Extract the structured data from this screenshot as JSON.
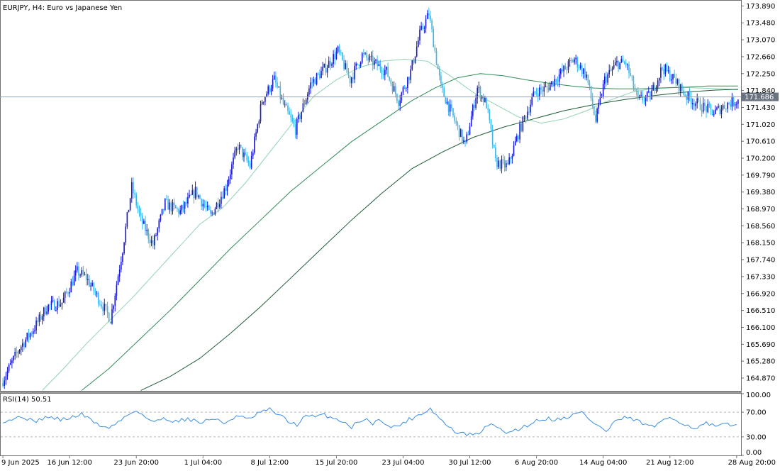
{
  "title": "EURJPY, H4:  Euro vs Japanese Yen",
  "colors": {
    "bull": "#1a1acc",
    "bear": "#38b8ec",
    "ma_fast": "#8fd3b0",
    "ma_mid": "#2e8b57",
    "ma_slow": "#1d5c36",
    "rsi": "#3a8ee6",
    "price_line": "#9aa3ad",
    "frame": "#707070"
  },
  "chart_data": [
    {
      "type": "candlestick",
      "symbol": "EURJPY",
      "timeframe": "H4",
      "ylim": [
        164.56,
        174.0
      ],
      "y_ticks": [
        "173.890",
        "173.480",
        "173.070",
        "172.660",
        "172.250",
        "171.840",
        "171.430",
        "171.020",
        "170.610",
        "170.200",
        "169.790",
        "169.380",
        "168.970",
        "168.560",
        "168.150",
        "167.740",
        "167.330",
        "166.920",
        "166.510",
        "166.100",
        "165.690",
        "165.280",
        "164.870"
      ],
      "y_tick_values": [
        173.89,
        173.48,
        173.07,
        172.66,
        172.25,
        171.84,
        171.43,
        171.02,
        170.61,
        170.2,
        169.79,
        169.38,
        168.97,
        168.56,
        168.15,
        167.74,
        167.33,
        166.92,
        166.51,
        166.1,
        165.69,
        165.28,
        164.87
      ],
      "x_ticks": [
        "9 Jun 2025",
        "16 Jun 12:00",
        "23 Jun 20:00",
        "1 Jul 04:00",
        "8 Jul 12:00",
        "15 Jul 20:00",
        "23 Jul 04:00",
        "30 Jul 12:00",
        "6 Aug 20:00",
        "14 Aug 04:00",
        "21 Aug 12:00",
        "28 Aug 20:00"
      ],
      "x_tick_bars": [
        0,
        44,
        88,
        132,
        176,
        220,
        264,
        308,
        352,
        396,
        440,
        484
      ],
      "bar_count": 486,
      "current_price": 171.686,
      "current_price_label": "171.686",
      "price_path": [
        [
          0,
          164.75
        ],
        [
          12,
          165.6
        ],
        [
          22,
          166.1
        ],
        [
          30,
          166.6
        ],
        [
          40,
          166.7
        ],
        [
          50,
          167.45
        ],
        [
          56,
          167.3
        ],
        [
          64,
          166.8
        ],
        [
          72,
          166.3
        ],
        [
          80,
          168.0
        ],
        [
          86,
          169.5
        ],
        [
          92,
          168.7
        ],
        [
          100,
          168.1
        ],
        [
          108,
          169.1
        ],
        [
          118,
          168.9
        ],
        [
          128,
          169.4
        ],
        [
          138,
          168.8
        ],
        [
          148,
          169.5
        ],
        [
          156,
          170.5
        ],
        [
          164,
          170.0
        ],
        [
          172,
          171.6
        ],
        [
          180,
          172.1
        ],
        [
          186,
          171.5
        ],
        [
          194,
          170.9
        ],
        [
          204,
          172.0
        ],
        [
          214,
          172.4
        ],
        [
          222,
          172.8
        ],
        [
          230,
          172.1
        ],
        [
          238,
          172.7
        ],
        [
          246,
          172.5
        ],
        [
          254,
          172.3
        ],
        [
          262,
          171.6
        ],
        [
          270,
          172.3
        ],
        [
          276,
          173.2
        ],
        [
          282,
          173.7
        ],
        [
          290,
          171.9
        ],
        [
          298,
          171.2
        ],
        [
          306,
          170.5
        ],
        [
          314,
          171.9
        ],
        [
          320,
          171.5
        ],
        [
          326,
          170.1
        ],
        [
          334,
          170.0
        ],
        [
          342,
          170.9
        ],
        [
          352,
          171.8
        ],
        [
          360,
          171.9
        ],
        [
          370,
          172.3
        ],
        [
          378,
          172.6
        ],
        [
          386,
          172.2
        ],
        [
          392,
          171.1
        ],
        [
          398,
          172.1
        ],
        [
          406,
          172.5
        ],
        [
          412,
          172.5
        ],
        [
          420,
          171.6
        ],
        [
          428,
          171.7
        ],
        [
          436,
          172.4
        ],
        [
          444,
          172.1
        ],
        [
          452,
          171.7
        ],
        [
          460,
          171.5
        ],
        [
          470,
          171.3
        ],
        [
          478,
          171.5
        ],
        [
          485,
          171.6
        ]
      ],
      "moving_averages": [
        {
          "period_hint": "fast",
          "path": [
            [
              26,
              164.57
            ],
            [
              40,
              165.1
            ],
            [
              55,
              165.7
            ],
            [
              70,
              166.25
            ],
            [
              85,
              166.8
            ],
            [
              100,
              167.4
            ],
            [
              115,
              168.0
            ],
            [
              130,
              168.6
            ],
            [
              145,
              169.0
            ],
            [
              160,
              169.6
            ],
            [
              175,
              170.3
            ],
            [
              190,
              171.0
            ],
            [
              205,
              171.7
            ],
            [
              220,
              172.1
            ],
            [
              235,
              172.4
            ],
            [
              250,
              172.55
            ],
            [
              265,
              172.6
            ],
            [
              280,
              172.55
            ],
            [
              295,
              172.2
            ],
            [
              310,
              171.8
            ],
            [
              325,
              171.5
            ],
            [
              340,
              171.2
            ],
            [
              355,
              171.05
            ],
            [
              370,
              171.15
            ],
            [
              385,
              171.35
            ],
            [
              400,
              171.6
            ],
            [
              415,
              171.8
            ],
            [
              430,
              171.9
            ],
            [
              445,
              171.92
            ],
            [
              460,
              171.9
            ],
            [
              475,
              171.88
            ],
            [
              485,
              171.86
            ]
          ]
        },
        {
          "period_hint": "mid",
          "path": [
            [
              52,
              164.57
            ],
            [
              70,
              165.1
            ],
            [
              90,
              165.8
            ],
            [
              110,
              166.5
            ],
            [
              130,
              167.25
            ],
            [
              150,
              168.0
            ],
            [
              170,
              168.7
            ],
            [
              190,
              169.4
            ],
            [
              210,
              170.0
            ],
            [
              230,
              170.6
            ],
            [
              250,
              171.1
            ],
            [
              270,
              171.6
            ],
            [
              285,
              171.9
            ],
            [
              300,
              172.15
            ],
            [
              315,
              172.25
            ],
            [
              330,
              172.2
            ],
            [
              345,
              172.1
            ],
            [
              360,
              172.02
            ],
            [
              375,
              171.95
            ],
            [
              390,
              171.9
            ],
            [
              405,
              171.88
            ],
            [
              420,
              171.88
            ],
            [
              435,
              171.9
            ],
            [
              450,
              171.92
            ],
            [
              465,
              171.95
            ],
            [
              485,
              171.95
            ]
          ]
        },
        {
          "period_hint": "slow",
          "path": [
            [
              91,
              164.57
            ],
            [
              110,
              164.9
            ],
            [
              130,
              165.35
            ],
            [
              150,
              165.95
            ],
            [
              170,
              166.6
            ],
            [
              190,
              167.3
            ],
            [
              210,
              168.0
            ],
            [
              230,
              168.7
            ],
            [
              250,
              169.35
            ],
            [
              270,
              169.95
            ],
            [
              290,
              170.35
            ],
            [
              310,
              170.7
            ],
            [
              330,
              170.95
            ],
            [
              350,
              171.15
            ],
            [
              370,
              171.35
            ],
            [
              390,
              171.5
            ],
            [
              410,
              171.62
            ],
            [
              430,
              171.72
            ],
            [
              450,
              171.8
            ],
            [
              470,
              171.85
            ],
            [
              485,
              171.87
            ]
          ]
        }
      ]
    },
    {
      "type": "line",
      "indicator": "RSI(14)",
      "label": "RSI(14) 50.51",
      "ylim": [
        0,
        100
      ],
      "y_ticks": [
        "100.00",
        "70.00",
        "30.00",
        "0.00"
      ],
      "y_tick_values": [
        100,
        70,
        30,
        0
      ],
      "levels": [
        70,
        30
      ],
      "current_value": 50.51,
      "path": [
        [
          0,
          56
        ],
        [
          8,
          60
        ],
        [
          14,
          63
        ],
        [
          20,
          54
        ],
        [
          28,
          62
        ],
        [
          34,
          60
        ],
        [
          40,
          58
        ],
        [
          46,
          62
        ],
        [
          52,
          67
        ],
        [
          56,
          60
        ],
        [
          62,
          52
        ],
        [
          68,
          44
        ],
        [
          74,
          50
        ],
        [
          82,
          65
        ],
        [
          88,
          74
        ],
        [
          94,
          62
        ],
        [
          100,
          53
        ],
        [
          106,
          61
        ],
        [
          114,
          55
        ],
        [
          122,
          60
        ],
        [
          130,
          53
        ],
        [
          138,
          60
        ],
        [
          146,
          52
        ],
        [
          154,
          64
        ],
        [
          162,
          58
        ],
        [
          170,
          70
        ],
        [
          176,
          74
        ],
        [
          182,
          66
        ],
        [
          188,
          55
        ],
        [
          194,
          50
        ],
        [
          200,
          64
        ],
        [
          206,
          62
        ],
        [
          212,
          66
        ],
        [
          218,
          60
        ],
        [
          224,
          56
        ],
        [
          230,
          46
        ],
        [
          238,
          60
        ],
        [
          244,
          52
        ],
        [
          250,
          58
        ],
        [
          256,
          44
        ],
        [
          262,
          50
        ],
        [
          268,
          58
        ],
        [
          276,
          68
        ],
        [
          282,
          76
        ],
        [
          288,
          60
        ],
        [
          294,
          46
        ],
        [
          300,
          36
        ],
        [
          306,
          34
        ],
        [
          312,
          33
        ],
        [
          318,
          44
        ],
        [
          324,
          52
        ],
        [
          330,
          36
        ],
        [
          336,
          40
        ],
        [
          342,
          44
        ],
        [
          348,
          52
        ],
        [
          354,
          58
        ],
        [
          360,
          60
        ],
        [
          366,
          58
        ],
        [
          374,
          64
        ],
        [
          382,
          70
        ],
        [
          388,
          56
        ],
        [
          394,
          46
        ],
        [
          398,
          38
        ],
        [
          404,
          56
        ],
        [
          410,
          60
        ],
        [
          416,
          58
        ],
        [
          422,
          52
        ],
        [
          428,
          46
        ],
        [
          434,
          52
        ],
        [
          440,
          62
        ],
        [
          446,
          56
        ],
        [
          452,
          48
        ],
        [
          458,
          44
        ],
        [
          464,
          52
        ],
        [
          470,
          46
        ],
        [
          476,
          50
        ],
        [
          482,
          48
        ],
        [
          485,
          51
        ]
      ]
    }
  ]
}
